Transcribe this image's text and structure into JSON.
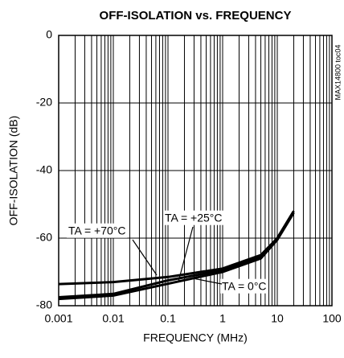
{
  "chart_data": {
    "type": "line",
    "title": "OFF-ISOLATION vs. FREQUENCY",
    "x_label": "FREQUENCY (MHz)",
    "y_label": "OFF-ISOLATION (dB)",
    "side_note": "MAX14800 toc04",
    "x": [
      0.001,
      0.01,
      0.1,
      1,
      5,
      10,
      20
    ],
    "series": [
      {
        "name": "TA = +70°C",
        "color": "#000000",
        "values": [
          -73.6,
          -73,
          -71.5,
          -69,
          -65,
          -60,
          -52
        ]
      },
      {
        "name": "TA = +25°C",
        "color": "#000000",
        "values": [
          -77.5,
          -76.5,
          -72.5,
          -69.5,
          -65.5,
          -60,
          -52
        ]
      },
      {
        "name": "TA = 0°C",
        "color": "#000000",
        "values": [
          -78,
          -77,
          -73.5,
          -70,
          -66,
          -60.5,
          -52.5
        ]
      }
    ],
    "xlim": [
      0.001,
      100
    ],
    "xticks": [
      0.001,
      0.01,
      0.1,
      1,
      10,
      100
    ],
    "xscale": "log",
    "ylim": [
      -80,
      0
    ],
    "yticks": [
      -80,
      -60,
      -40,
      -20,
      0
    ],
    "grid": true
  }
}
